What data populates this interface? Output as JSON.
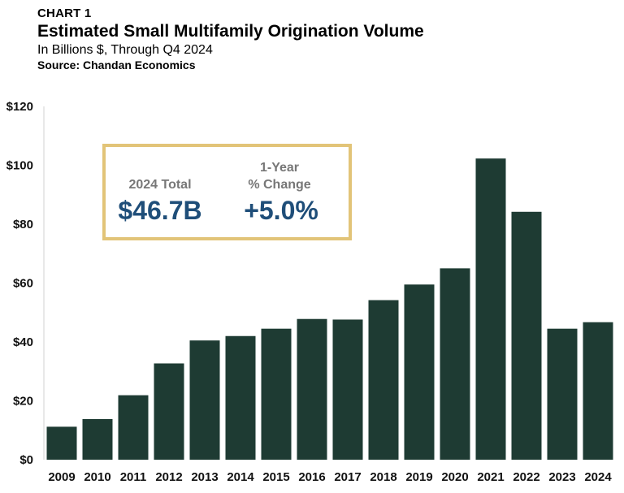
{
  "header": {
    "kicker": "CHART 1",
    "title": "Estimated Small Multifamily Origination Volume",
    "subtitle": "In Billions $, Through Q4 2024",
    "source": "Source: Chandan Economics"
  },
  "callout": {
    "total_label": "2024 Total",
    "total_value": "$46.7B",
    "change_label_line1": "1-Year",
    "change_label_line2": "% Change",
    "change_value": "+5.0%",
    "border_color": "#e2c478"
  },
  "chart_data": {
    "type": "bar",
    "title": "Estimated Small Multifamily Origination Volume",
    "subtitle": "In Billions $, Through Q4 2024",
    "xlabel": "",
    "ylabel": "",
    "categories": [
      "2009",
      "2010",
      "2011",
      "2012",
      "2013",
      "2014",
      "2015",
      "2016",
      "2017",
      "2018",
      "2019",
      "2020",
      "2021",
      "2022",
      "2023",
      "2024"
    ],
    "values": [
      11.2,
      13.8,
      21.9,
      32.7,
      40.5,
      42.0,
      44.5,
      47.8,
      47.6,
      54.2,
      59.5,
      65.0,
      102.3,
      84.2,
      44.5,
      46.7
    ],
    "ylim": [
      0,
      120
    ],
    "yticks": [
      0,
      20,
      40,
      60,
      80,
      100,
      120
    ],
    "ytick_labels": [
      "$0",
      "$20",
      "$40",
      "$60",
      "$80",
      "$100",
      "$120"
    ],
    "grid": false,
    "legend": "none",
    "bar_color": "#1e3b33"
  }
}
